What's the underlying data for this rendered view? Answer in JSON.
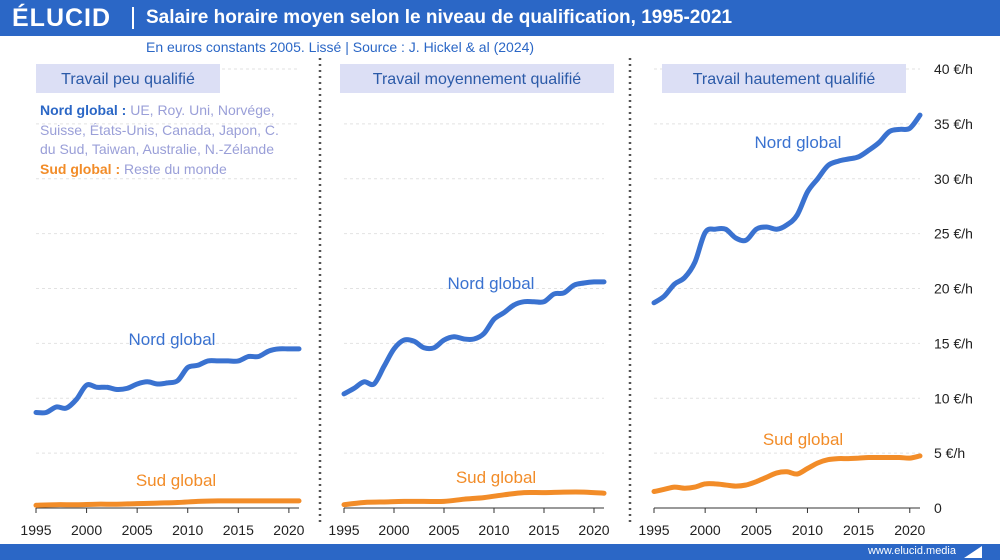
{
  "header": {
    "logo": "ÉLUCID",
    "title": "Salaire horaire moyen selon le niveau de qualification, 1995-2021",
    "subtitle": "En euros constants 2005. Lissé  |  Source : J. Hickel & al (2024)"
  },
  "legend": {
    "nord_label": "Nord global :",
    "nord_text": " UE, Roy. Uni, Norvége, Suisse, États-Unis, Canada, Japon, C. du Sud, Taiwan, Australie, N.-Zélande",
    "sud_label": "Sud global :",
    "sud_text": " Reste du monde"
  },
  "footer": {
    "url": "www.elucid.media"
  },
  "colors": {
    "nord": "#3a72d0",
    "sud": "#f28c28",
    "brand": "#2b67c6",
    "panel_title_bg": "#dcdff5"
  },
  "chart_data": {
    "type": "line",
    "x_ticks": [
      1995,
      2000,
      2005,
      2010,
      2015,
      2020
    ],
    "xlim": [
      1995,
      2021
    ],
    "ylim": [
      0,
      40
    ],
    "y_ticks": [
      "0",
      "5 €/h",
      "10 €/h",
      "15 €/h",
      "20 €/h",
      "25 €/h",
      "30 €/h",
      "35 €/h",
      "40 €/h"
    ],
    "y_tick_values": [
      0,
      5,
      10,
      15,
      20,
      25,
      30,
      35,
      40
    ],
    "grid": true,
    "panels": [
      {
        "title": "Travail peu qualifié",
        "series": [
          {
            "name": "Nord global",
            "color": "#3a72d0",
            "x": [
              1995,
              1996,
              1997,
              1998,
              1999,
              2000,
              2001,
              2002,
              2003,
              2004,
              2005,
              2006,
              2007,
              2008,
              2009,
              2010,
              2011,
              2012,
              2013,
              2014,
              2015,
              2016,
              2017,
              2018,
              2019,
              2020,
              2021
            ],
            "y": [
              8.7,
              8.7,
              9.2,
              9.1,
              9.9,
              11.2,
              11.0,
              11.0,
              10.8,
              10.9,
              11.3,
              11.5,
              11.3,
              11.4,
              11.6,
              12.8,
              13.0,
              13.4,
              13.4,
              13.4,
              13.4,
              13.8,
              13.8,
              14.3,
              14.5,
              14.5,
              14.5
            ]
          },
          {
            "name": "Sud global",
            "color": "#f28c28",
            "x": [
              1995,
              1997,
              1999,
              2001,
              2003,
              2005,
              2007,
              2009,
              2011,
              2013,
              2015,
              2017,
              2019,
              2021
            ],
            "y": [
              0.25,
              0.3,
              0.3,
              0.35,
              0.35,
              0.4,
              0.45,
              0.5,
              0.6,
              0.65,
              0.65,
              0.65,
              0.65,
              0.65
            ]
          }
        ]
      },
      {
        "title": "Travail moyennement qualifié",
        "series": [
          {
            "name": "Nord global",
            "color": "#3a72d0",
            "x": [
              1995,
              1996,
              1997,
              1998,
              1999,
              2000,
              2001,
              2002,
              2003,
              2004,
              2005,
              2006,
              2007,
              2008,
              2009,
              2010,
              2011,
              2012,
              2013,
              2014,
              2015,
              2016,
              2017,
              2018,
              2019,
              2020,
              2021
            ],
            "y": [
              10.4,
              10.9,
              11.5,
              11.3,
              12.9,
              14.5,
              15.3,
              15.2,
              14.6,
              14.6,
              15.3,
              15.6,
              15.4,
              15.4,
              15.9,
              17.2,
              17.8,
              18.5,
              18.8,
              18.8,
              18.8,
              19.5,
              19.6,
              20.3,
              20.5,
              20.6,
              20.6
            ]
          },
          {
            "name": "Sud global",
            "color": "#f28c28",
            "x": [
              1995,
              1997,
              1999,
              2001,
              2003,
              2005,
              2007,
              2009,
              2011,
              2013,
              2015,
              2017,
              2019,
              2021
            ],
            "y": [
              0.3,
              0.5,
              0.55,
              0.6,
              0.6,
              0.6,
              0.8,
              0.95,
              1.2,
              1.4,
              1.4,
              1.45,
              1.45,
              1.35
            ]
          }
        ]
      },
      {
        "title": "Travail hautement qualifié",
        "series": [
          {
            "name": "Nord global",
            "color": "#3a72d0",
            "x": [
              1995,
              1996,
              1997,
              1998,
              1999,
              2000,
              2001,
              2002,
              2003,
              2004,
              2005,
              2006,
              2007,
              2008,
              2009,
              2010,
              2011,
              2012,
              2013,
              2014,
              2015,
              2016,
              2017,
              2018,
              2019,
              2020,
              2021
            ],
            "y": [
              18.7,
              19.3,
              20.4,
              21.0,
              22.4,
              25.1,
              25.4,
              25.4,
              24.6,
              24.4,
              25.4,
              25.6,
              25.4,
              25.8,
              26.7,
              28.8,
              30.0,
              31.2,
              31.6,
              31.8,
              32.0,
              32.6,
              33.3,
              34.3,
              34.5,
              34.6,
              35.8
            ]
          },
          {
            "name": "Sud global",
            "color": "#f28c28",
            "x": [
              1995,
              1996,
              1997,
              1998,
              1999,
              2000,
              2001,
              2002,
              2003,
              2004,
              2005,
              2006,
              2007,
              2008,
              2009,
              2010,
              2011,
              2012,
              2013,
              2014,
              2015,
              2016,
              2017,
              2018,
              2019,
              2020,
              2021
            ],
            "y": [
              1.5,
              1.7,
              1.9,
              1.8,
              1.9,
              2.2,
              2.2,
              2.1,
              2.0,
              2.1,
              2.4,
              2.8,
              3.2,
              3.3,
              3.1,
              3.6,
              4.1,
              4.4,
              4.5,
              4.5,
              4.55,
              4.6,
              4.6,
              4.6,
              4.6,
              4.55,
              4.75
            ]
          }
        ]
      }
    ]
  }
}
